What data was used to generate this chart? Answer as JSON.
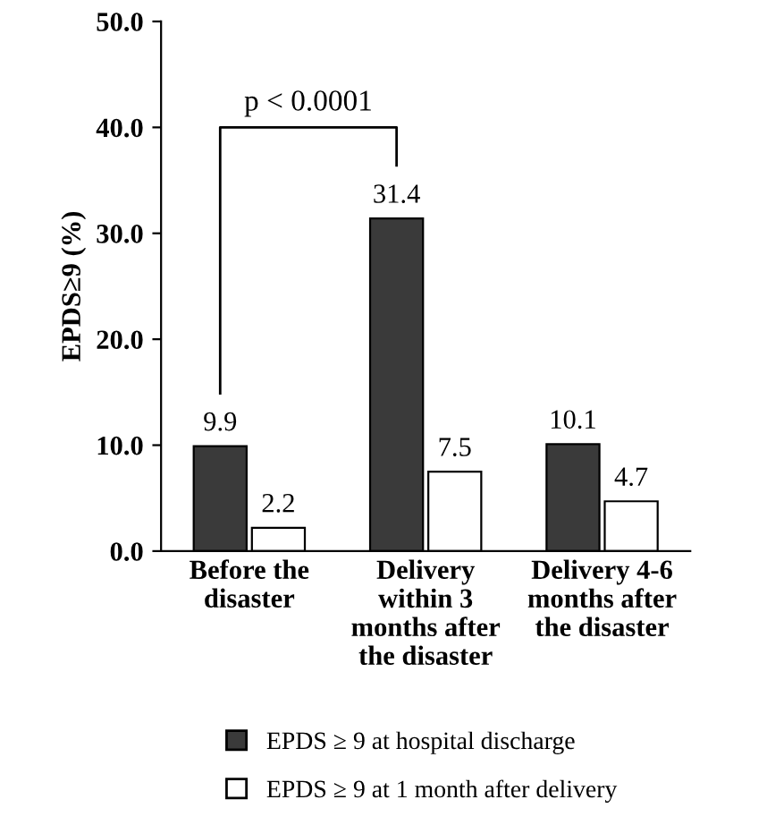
{
  "chart_data": {
    "type": "bar",
    "ylabel": "EPDS≥9 (%)",
    "categories": [
      "Before the\ndisaster",
      "Delivery\nwithin 3\nmonths after\nthe disaster",
      "Delivery 4-6\nmonths after\nthe disaster"
    ],
    "series": [
      {
        "name": "EPDS ≥ 9 at hospital discharge",
        "color": "#3a3a3a",
        "values": [
          9.9,
          31.4,
          10.1
        ]
      },
      {
        "name": "EPDS ≥ 9 at 1 month after delivery",
        "color": "#ffffff",
        "values": [
          2.2,
          7.5,
          4.7
        ]
      }
    ],
    "ylim": [
      0,
      50
    ],
    "yticks": [
      {
        "value": 0,
        "label": "0.0"
      },
      {
        "value": 10,
        "label": "10.0"
      },
      {
        "value": 20,
        "label": "20.0"
      },
      {
        "value": 30,
        "label": "30.0"
      },
      {
        "value": 40,
        "label": "40.0"
      },
      {
        "value": 50,
        "label": "50.0"
      }
    ],
    "data_labels": true,
    "annotations": [
      "p < 0.0001"
    ],
    "legend": "bottom"
  }
}
